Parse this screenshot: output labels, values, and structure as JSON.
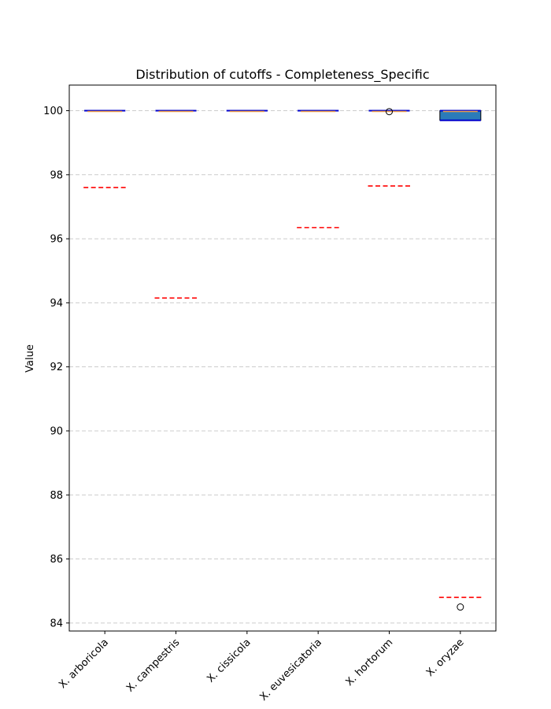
{
  "chart_data": {
    "type": "box",
    "title": "Distribution of cutoffs - Completeness_Specific",
    "xlabel": "",
    "ylabel": "Value",
    "ylim": [
      83.75,
      100.8
    ],
    "yticks": [
      84,
      86,
      88,
      90,
      92,
      94,
      96,
      98,
      100
    ],
    "grid": "y dashed",
    "categories": [
      "X. arboricola",
      "X. campestris",
      "X. cissicola",
      "X. euvesicatoria",
      "X. hortorum",
      "X. oryzae"
    ],
    "boxes": [
      {
        "q1": 100.0,
        "median": 100.0,
        "q3": 100.0,
        "whisker_low": 100.0,
        "whisker_high": 100.0,
        "outliers": [],
        "cutoff": 97.6
      },
      {
        "q1": 100.0,
        "median": 100.0,
        "q3": 100.0,
        "whisker_low": 100.0,
        "whisker_high": 100.0,
        "outliers": [],
        "cutoff": 94.15
      },
      {
        "q1": 100.0,
        "median": 100.0,
        "q3": 100.0,
        "whisker_low": 100.0,
        "whisker_high": 100.0,
        "outliers": [],
        "cutoff": null
      },
      {
        "q1": 100.0,
        "median": 100.0,
        "q3": 100.0,
        "whisker_low": 100.0,
        "whisker_high": 100.0,
        "outliers": [],
        "cutoff": 96.35
      },
      {
        "q1": 100.0,
        "median": 100.0,
        "q3": 100.0,
        "whisker_low": 100.0,
        "whisker_high": 100.0,
        "outliers": [
          99.97
        ],
        "cutoff": 97.65
      },
      {
        "q1": 99.7,
        "median": 100.0,
        "q3": 100.0,
        "whisker_low": 99.7,
        "whisker_high": 100.0,
        "outliers": [
          84.5
        ],
        "cutoff": 84.8
      }
    ],
    "colors": {
      "box_fill": "#2b7bb9",
      "median": "#f0a04b",
      "whisker": "#0000cc",
      "cutoff_line": "#ff0000",
      "grid": "#cccccc"
    }
  }
}
